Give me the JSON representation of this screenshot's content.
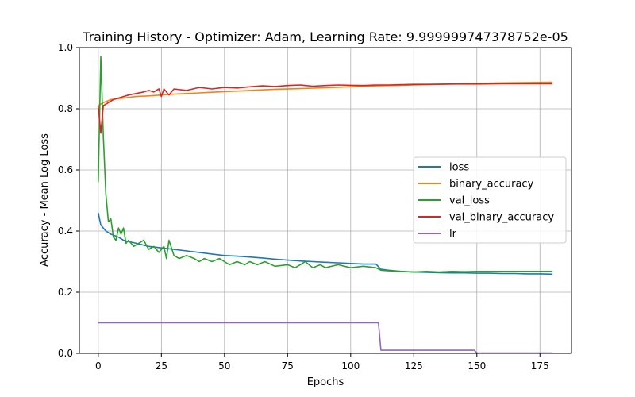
{
  "chart_data": {
    "type": "line",
    "title": "Training History - Optimizer: Adam, Learning Rate: 9.999999747378752e-05",
    "xlabel": "Epochs",
    "ylabel": "Accuracy - Mean Log Loss",
    "xlim": [
      -7.5,
      187.5
    ],
    "ylim": [
      0.0,
      1.0
    ],
    "x_ticks": [
      0,
      25,
      50,
      75,
      100,
      125,
      150,
      175
    ],
    "y_ticks": [
      0.0,
      0.2,
      0.4,
      0.6,
      0.8,
      1.0
    ],
    "grid": true,
    "legend_position": "center-right",
    "series": [
      {
        "name": "loss",
        "color": "#1f77b4",
        "points": [
          [
            0,
            0.46
          ],
          [
            1,
            0.42
          ],
          [
            2,
            0.41
          ],
          [
            3,
            0.4
          ],
          [
            5,
            0.39
          ],
          [
            8,
            0.38
          ],
          [
            10,
            0.37
          ],
          [
            15,
            0.36
          ],
          [
            20,
            0.35
          ],
          [
            25,
            0.345
          ],
          [
            30,
            0.34
          ],
          [
            35,
            0.335
          ],
          [
            40,
            0.33
          ],
          [
            45,
            0.325
          ],
          [
            50,
            0.32
          ],
          [
            55,
            0.318
          ],
          [
            60,
            0.315
          ],
          [
            65,
            0.312
          ],
          [
            70,
            0.308
          ],
          [
            75,
            0.305
          ],
          [
            80,
            0.302
          ],
          [
            85,
            0.3
          ],
          [
            90,
            0.298
          ],
          [
            95,
            0.296
          ],
          [
            100,
            0.294
          ],
          [
            105,
            0.292
          ],
          [
            110,
            0.292
          ],
          [
            112,
            0.275
          ],
          [
            115,
            0.272
          ],
          [
            120,
            0.268
          ],
          [
            125,
            0.266
          ],
          [
            130,
            0.265
          ],
          [
            135,
            0.264
          ],
          [
            140,
            0.263
          ],
          [
            145,
            0.263
          ],
          [
            150,
            0.262
          ],
          [
            155,
            0.262
          ],
          [
            160,
            0.261
          ],
          [
            165,
            0.261
          ],
          [
            170,
            0.26
          ],
          [
            175,
            0.26
          ],
          [
            180,
            0.259
          ]
        ]
      },
      {
        "name": "binary_accuracy",
        "color": "#ff7f0e",
        "points": [
          [
            0,
            0.81
          ],
          [
            1,
            0.815
          ],
          [
            2,
            0.82
          ],
          [
            5,
            0.83
          ],
          [
            10,
            0.835
          ],
          [
            15,
            0.84
          ],
          [
            20,
            0.842
          ],
          [
            25,
            0.845
          ],
          [
            30,
            0.848
          ],
          [
            40,
            0.852
          ],
          [
            50,
            0.856
          ],
          [
            60,
            0.86
          ],
          [
            70,
            0.864
          ],
          [
            80,
            0.866
          ],
          [
            90,
            0.869
          ],
          [
            100,
            0.872
          ],
          [
            110,
            0.875
          ],
          [
            120,
            0.877
          ],
          [
            130,
            0.879
          ],
          [
            140,
            0.881
          ],
          [
            150,
            0.883
          ],
          [
            160,
            0.885
          ],
          [
            170,
            0.886
          ],
          [
            180,
            0.887
          ]
        ]
      },
      {
        "name": "val_loss",
        "color": "#2ca02c",
        "points": [
          [
            0,
            0.56
          ],
          [
            1,
            0.97
          ],
          [
            2,
            0.71
          ],
          [
            3,
            0.52
          ],
          [
            4,
            0.43
          ],
          [
            5,
            0.44
          ],
          [
            6,
            0.38
          ],
          [
            7,
            0.37
          ],
          [
            8,
            0.41
          ],
          [
            9,
            0.39
          ],
          [
            10,
            0.41
          ],
          [
            11,
            0.36
          ],
          [
            12,
            0.37
          ],
          [
            14,
            0.35
          ],
          [
            16,
            0.36
          ],
          [
            18,
            0.37
          ],
          [
            20,
            0.34
          ],
          [
            22,
            0.35
          ],
          [
            24,
            0.33
          ],
          [
            26,
            0.35
          ],
          [
            27,
            0.31
          ],
          [
            28,
            0.37
          ],
          [
            30,
            0.32
          ],
          [
            32,
            0.31
          ],
          [
            35,
            0.32
          ],
          [
            38,
            0.31
          ],
          [
            40,
            0.3
          ],
          [
            42,
            0.31
          ],
          [
            45,
            0.3
          ],
          [
            48,
            0.31
          ],
          [
            50,
            0.3
          ],
          [
            52,
            0.29
          ],
          [
            55,
            0.3
          ],
          [
            58,
            0.29
          ],
          [
            60,
            0.3
          ],
          [
            63,
            0.29
          ],
          [
            66,
            0.3
          ],
          [
            70,
            0.285
          ],
          [
            75,
            0.29
          ],
          [
            78,
            0.28
          ],
          [
            80,
            0.29
          ],
          [
            82,
            0.3
          ],
          [
            85,
            0.28
          ],
          [
            88,
            0.29
          ],
          [
            90,
            0.28
          ],
          [
            95,
            0.29
          ],
          [
            100,
            0.28
          ],
          [
            105,
            0.285
          ],
          [
            110,
            0.28
          ],
          [
            112,
            0.272
          ],
          [
            115,
            0.27
          ],
          [
            120,
            0.268
          ],
          [
            125,
            0.266
          ],
          [
            130,
            0.268
          ],
          [
            135,
            0.266
          ],
          [
            140,
            0.268
          ],
          [
            145,
            0.267
          ],
          [
            150,
            0.268
          ],
          [
            160,
            0.268
          ],
          [
            170,
            0.268
          ],
          [
            180,
            0.268
          ]
        ]
      },
      {
        "name": "val_binary_accuracy",
        "color": "#d62728",
        "points": [
          [
            0,
            0.81
          ],
          [
            1,
            0.72
          ],
          [
            2,
            0.81
          ],
          [
            4,
            0.82
          ],
          [
            6,
            0.83
          ],
          [
            8,
            0.835
          ],
          [
            10,
            0.84
          ],
          [
            12,
            0.845
          ],
          [
            15,
            0.85
          ],
          [
            18,
            0.855
          ],
          [
            20,
            0.86
          ],
          [
            22,
            0.855
          ],
          [
            24,
            0.865
          ],
          [
            25,
            0.84
          ],
          [
            26,
            0.865
          ],
          [
            28,
            0.845
          ],
          [
            30,
            0.865
          ],
          [
            35,
            0.86
          ],
          [
            40,
            0.87
          ],
          [
            45,
            0.865
          ],
          [
            50,
            0.87
          ],
          [
            55,
            0.868
          ],
          [
            60,
            0.872
          ],
          [
            65,
            0.875
          ],
          [
            70,
            0.873
          ],
          [
            75,
            0.876
          ],
          [
            80,
            0.878
          ],
          [
            85,
            0.874
          ],
          [
            90,
            0.876
          ],
          [
            95,
            0.878
          ],
          [
            100,
            0.877
          ],
          [
            105,
            0.876
          ],
          [
            110,
            0.878
          ],
          [
            115,
            0.878
          ],
          [
            120,
            0.879
          ],
          [
            125,
            0.88
          ],
          [
            130,
            0.88
          ],
          [
            140,
            0.881
          ],
          [
            150,
            0.881
          ],
          [
            160,
            0.882
          ],
          [
            170,
            0.882
          ],
          [
            180,
            0.882
          ]
        ]
      },
      {
        "name": "lr",
        "color": "#9467bd",
        "points": [
          [
            0,
            0.1
          ],
          [
            111,
            0.1
          ],
          [
            112,
            0.01
          ],
          [
            149,
            0.01
          ],
          [
            150,
            0.001
          ],
          [
            180,
            0.001
          ]
        ]
      }
    ]
  }
}
